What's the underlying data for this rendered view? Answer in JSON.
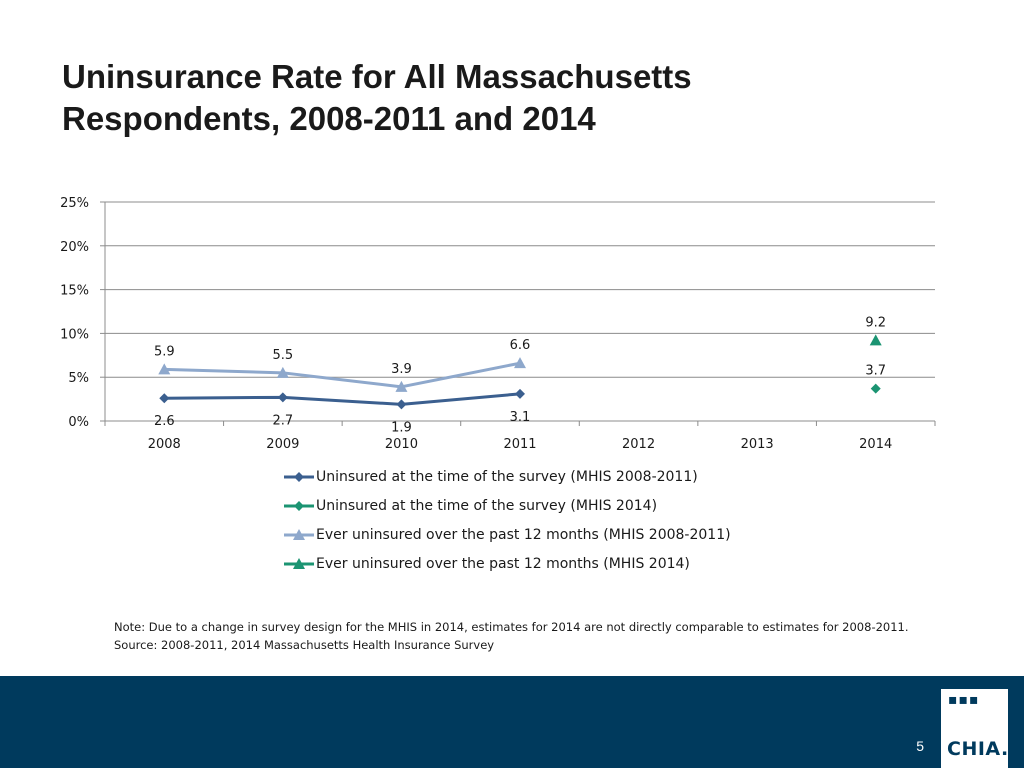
{
  "slide": {
    "title_line1": "Uninsurance Rate for All Massachusetts",
    "title_line2": "Respondents, 2008-2011 and 2014",
    "note_line1": "Note: Due to a change in survey design for the MHIS in 2014, estimates for 2014 are not directly comparable to estimates for 2008-2011.",
    "note_line2": "Source:  2008-2011, 2014 Massachusetts Health Insurance Survey",
    "page_number": "5",
    "logo_dots": "▪▪▪",
    "logo_text": "CHIA."
  },
  "chart_data": {
    "type": "line",
    "title": "",
    "xlabel": "",
    "ylabel": "",
    "categories": [
      "2008",
      "2009",
      "2010",
      "2011",
      "2012",
      "2013",
      "2014"
    ],
    "ylim": [
      0,
      25
    ],
    "yticks": [
      0,
      5,
      10,
      15,
      20,
      25
    ],
    "ytick_labels": [
      "0%",
      "5%",
      "10%",
      "15%",
      "20%",
      "25%"
    ],
    "grid": true,
    "legend_position": "bottom",
    "series": [
      {
        "name": "Uninsured at the time of the survey (MHIS 2008-2011)",
        "marker": "diamond",
        "color": "#3b5f8f",
        "label_position": "below",
        "values": [
          2.6,
          2.7,
          1.9,
          3.1,
          null,
          null,
          null
        ],
        "labels": [
          "2.6",
          "2.7",
          "1.9",
          "3.1",
          null,
          null,
          null
        ]
      },
      {
        "name": "Uninsured at the time of the survey (MHIS 2014)",
        "marker": "diamond",
        "color": "#1b9472",
        "label_position": "above",
        "values": [
          null,
          null,
          null,
          null,
          null,
          null,
          3.7
        ],
        "labels": [
          null,
          null,
          null,
          null,
          null,
          null,
          "3.7"
        ]
      },
      {
        "name": "Ever uninsured over the past 12 months (MHIS 2008-2011)",
        "marker": "triangle",
        "color": "#8ea8cc",
        "label_position": "above",
        "values": [
          5.9,
          5.5,
          3.9,
          6.6,
          null,
          null,
          null
        ],
        "labels": [
          "5.9",
          "5.5",
          "3.9",
          "6.6",
          null,
          null,
          null
        ]
      },
      {
        "name": "Ever uninsured over the past 12 months (MHIS 2014)",
        "marker": "triangle",
        "color": "#1b9472",
        "label_position": "above",
        "values": [
          null,
          null,
          null,
          null,
          null,
          null,
          9.2
        ],
        "labels": [
          null,
          null,
          null,
          null,
          null,
          null,
          "9.2"
        ]
      }
    ]
  }
}
